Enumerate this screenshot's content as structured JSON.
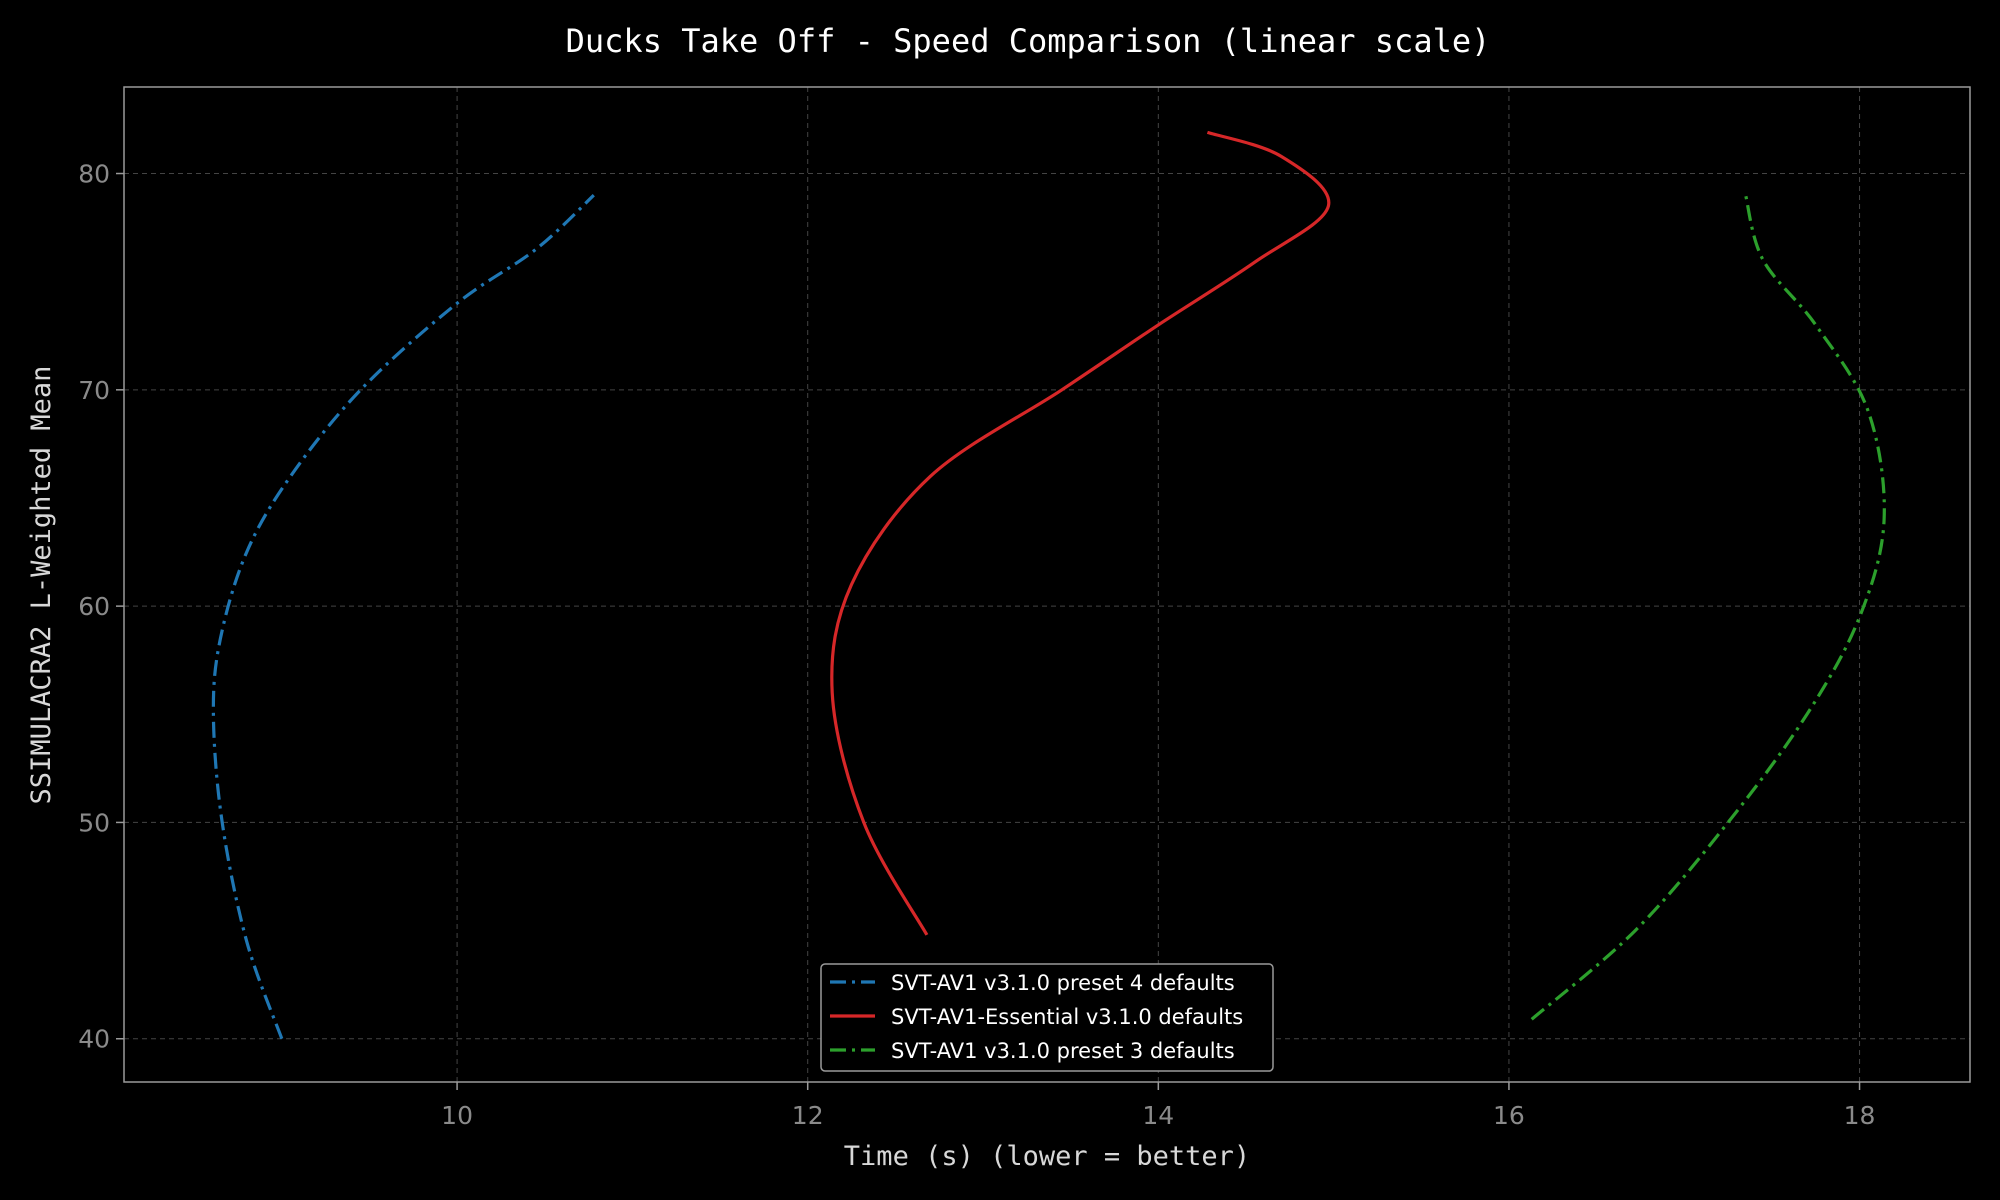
{
  "chart_data": {
    "type": "line",
    "title": "Ducks Take Off - Speed Comparison (linear scale)",
    "xlabel": "Time (s) (lower = better)",
    "ylabel": "SSIMULACRA2 L-Weighted Mean",
    "xlim": [
      8.1,
      18.63
    ],
    "ylim": [
      38,
      84
    ],
    "xticks": [
      10,
      12,
      14,
      16,
      18
    ],
    "yticks": [
      40,
      50,
      60,
      70,
      80
    ],
    "grid": true,
    "legend_position": "bottom-center",
    "series": [
      {
        "name": "SVT-AV1 v3.1.0 preset 4 defaults",
        "color": "#1f77b4",
        "style": "dashdot",
        "points": [
          [
            9.0,
            40.0
          ],
          [
            8.8,
            44.5
          ],
          [
            8.66,
            50.0
          ],
          [
            8.61,
            55.0
          ],
          [
            8.65,
            58.5
          ],
          [
            8.8,
            62.5
          ],
          [
            9.05,
            66.0
          ],
          [
            9.45,
            70.0
          ],
          [
            10.0,
            74.0
          ],
          [
            10.45,
            76.5
          ],
          [
            10.78,
            79.0
          ]
        ]
      },
      {
        "name": "SVT-AV1-Essential v3.1.0 defaults",
        "color": "#d62728",
        "style": "solid",
        "points": [
          [
            12.68,
            44.8
          ],
          [
            12.32,
            50.0
          ],
          [
            12.14,
            56.0
          ],
          [
            12.25,
            61.0
          ],
          [
            12.7,
            66.0
          ],
          [
            13.45,
            70.0
          ],
          [
            14.0,
            73.0
          ],
          [
            14.55,
            75.9
          ],
          [
            14.97,
            78.5
          ],
          [
            14.7,
            80.8
          ],
          [
            14.28,
            81.9
          ]
        ]
      },
      {
        "name": "SVT-AV1 v3.1.0 preset 3 defaults",
        "color": "#2ca02c",
        "style": "dashdot",
        "points": [
          [
            16.13,
            40.9
          ],
          [
            16.72,
            45.0
          ],
          [
            17.25,
            50.0
          ],
          [
            17.7,
            55.0
          ],
          [
            18.0,
            59.5
          ],
          [
            18.14,
            64.0
          ],
          [
            18.05,
            69.0
          ],
          [
            17.75,
            73.0
          ],
          [
            17.45,
            76.0
          ],
          [
            17.35,
            79.0
          ]
        ]
      }
    ]
  }
}
